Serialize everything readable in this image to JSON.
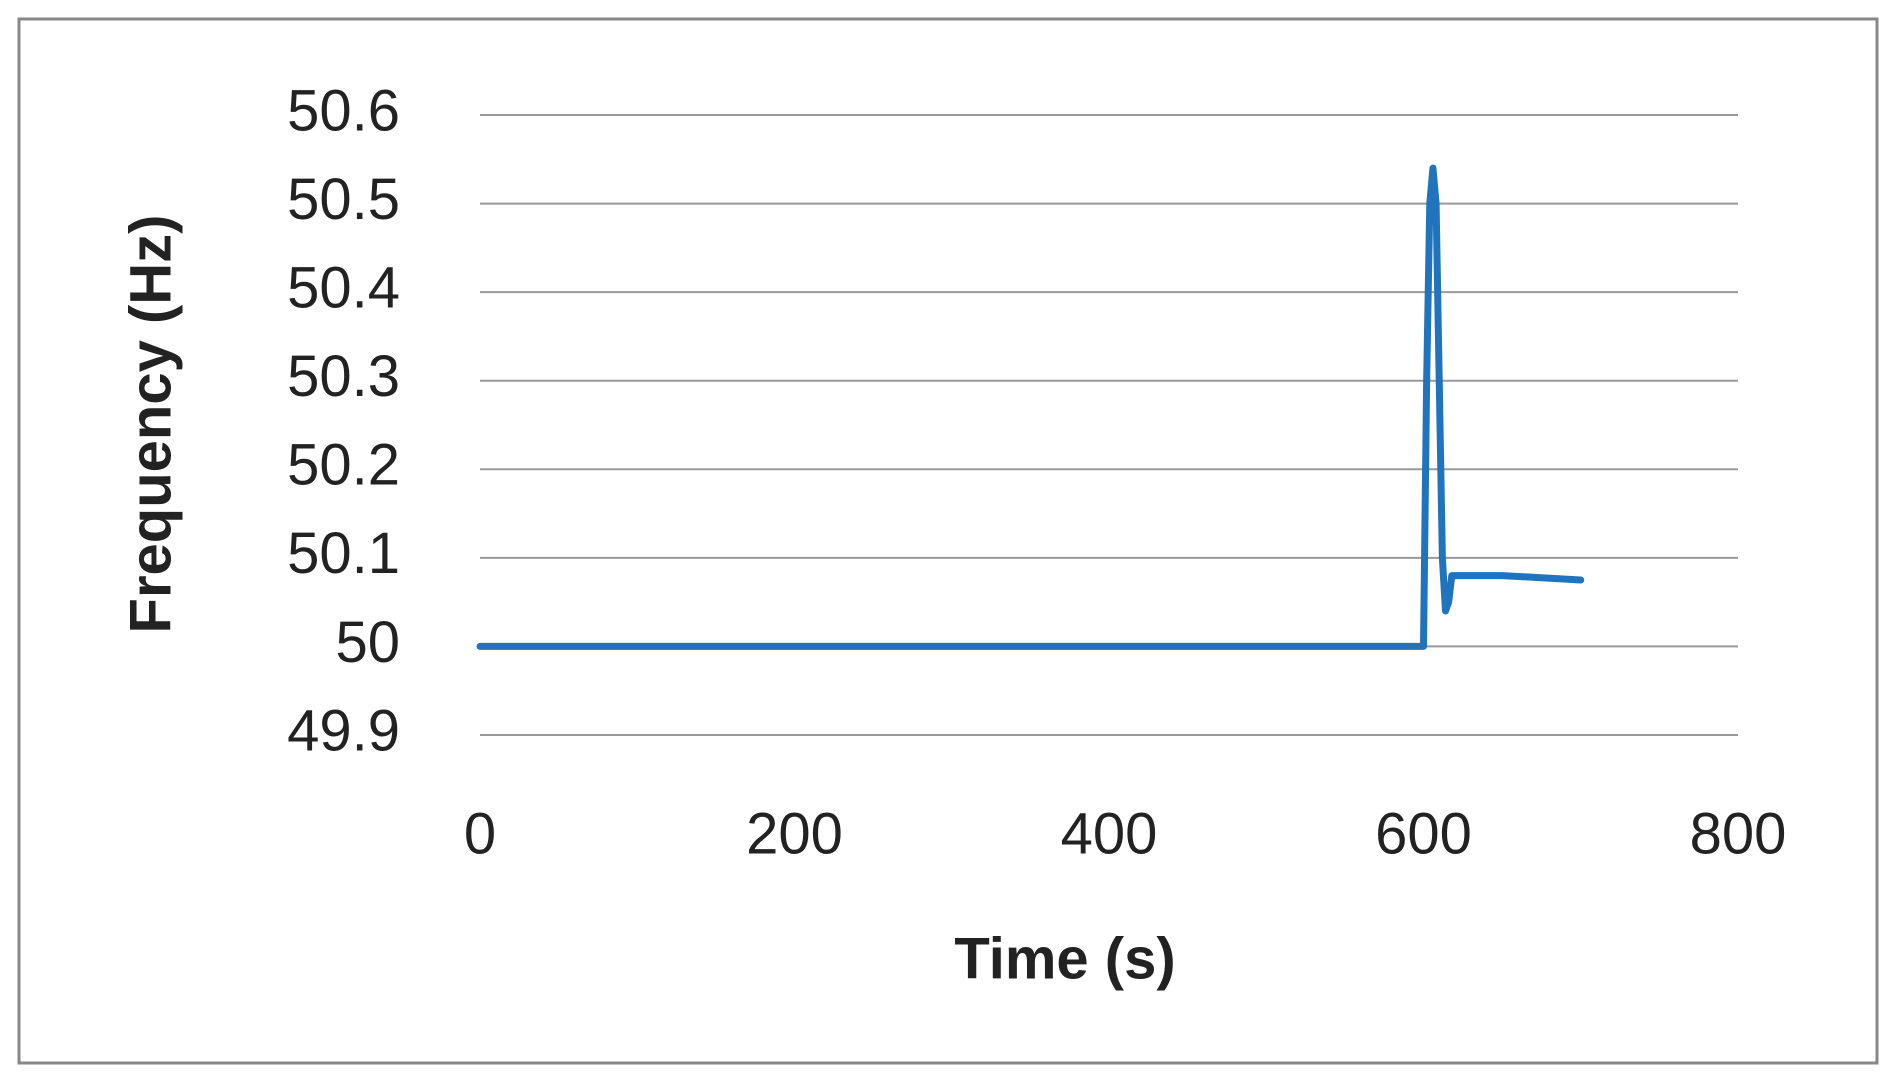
{
  "chart_data": {
    "type": "line",
    "x_label": "Time (s)",
    "y_label": "Frequency (Hz)",
    "x": [
      0,
      600,
      602,
      604,
      606,
      608,
      610,
      612,
      614,
      616,
      618,
      620,
      630,
      650,
      700
    ],
    "series": [
      {
        "color": "#1f74bd",
        "values": [
          50,
          50,
          50.3,
          50.5,
          50.54,
          50.5,
          50.3,
          50.1,
          50.04,
          50.05,
          50.08,
          50.08,
          50.08,
          50.08,
          50.075
        ]
      }
    ],
    "xlim": [
      0,
      800
    ],
    "xticks": [
      0,
      200,
      400,
      600,
      800
    ],
    "ylim": [
      49.9,
      50.6
    ],
    "yticks": [
      49.9,
      50,
      50.1,
      50.2,
      50.3,
      50.4,
      50.5,
      50.6
    ],
    "grid": true
  }
}
